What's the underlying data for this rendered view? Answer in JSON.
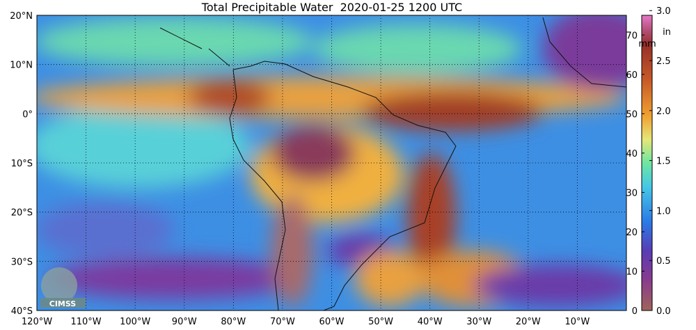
{
  "title": "Total Precipitable Water  2020-01-25 1200 UTC",
  "map": {
    "lat_labels": [
      {
        "value": 20,
        "label": "20°N"
      },
      {
        "value": 10,
        "label": "10°N"
      },
      {
        "value": 0,
        "label": "0°"
      },
      {
        "value": -10,
        "label": "10°S"
      },
      {
        "value": -20,
        "label": "20°S"
      },
      {
        "value": -30,
        "label": "30°S"
      },
      {
        "value": -40,
        "label": "40°S"
      }
    ],
    "lon_labels": [
      {
        "value": -120,
        "label": "120°W"
      },
      {
        "value": -110,
        "label": "110°W"
      },
      {
        "value": -100,
        "label": "100°W"
      },
      {
        "value": -90,
        "label": "90°W"
      },
      {
        "value": -80,
        "label": "80°W"
      },
      {
        "value": -70,
        "label": "70°W"
      },
      {
        "value": -60,
        "label": "60°W"
      },
      {
        "value": -50,
        "label": "50°W"
      },
      {
        "value": -40,
        "label": "40°W"
      },
      {
        "value": -30,
        "label": "30°W"
      },
      {
        "value": -20,
        "label": "20°W"
      },
      {
        "value": -10,
        "label": "10°W"
      }
    ],
    "lonlim": [
      -120,
      0
    ],
    "latlim": [
      -40,
      20
    ]
  },
  "colorbar": {
    "mm_unit": "mm",
    "in_unit": "in",
    "mm_lim": [
      0,
      75
    ],
    "mm_ticks": [
      0,
      10,
      20,
      30,
      40,
      50,
      60,
      70
    ],
    "in_ticks": [
      {
        "value": 0,
        "label": "0.0"
      },
      {
        "value": 0.5,
        "label": "0.5"
      },
      {
        "value": 1,
        "label": "1.0"
      },
      {
        "value": 1.5,
        "label": "1.5"
      },
      {
        "value": 2,
        "label": "2.0"
      },
      {
        "value": 2.5,
        "label": "2.5"
      },
      {
        "value": 3,
        "label": "3.0"
      }
    ]
  },
  "logo": "CIMSS"
}
